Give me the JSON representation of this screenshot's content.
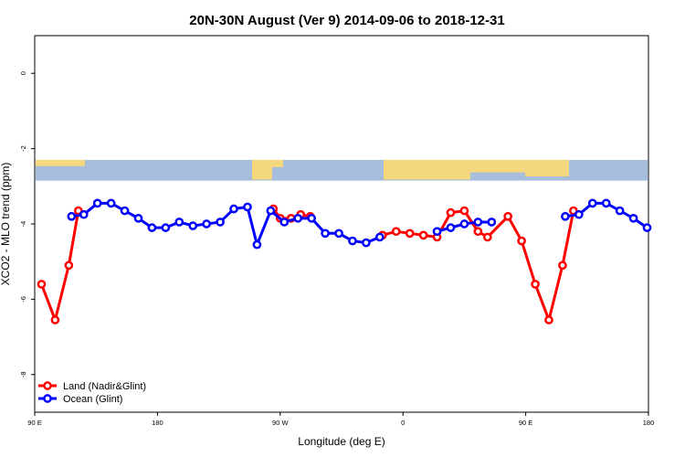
{
  "chart_data": {
    "type": "line",
    "title": "20N-30N August (Ver 9)   2014-09-06 to 2018-12-31",
    "xlabel": "Longitude (deg E)",
    "ylabel": "XCO2 - MLO trend (ppm)",
    "xlim": [
      90,
      540
    ],
    "ylim": [
      -9,
      1
    ],
    "x_ticks": [
      {
        "value": 90,
        "label": "90 E"
      },
      {
        "value": 180,
        "label": "180"
      },
      {
        "value": 270,
        "label": "90 W"
      },
      {
        "value": 360,
        "label": "0"
      },
      {
        "value": 450,
        "label": "90 E"
      },
      {
        "value": 540,
        "label": "180"
      }
    ],
    "y_ticks": [
      {
        "value": 0,
        "label": "0"
      },
      {
        "value": -2,
        "label": "-2"
      },
      {
        "value": -4,
        "label": "-4"
      },
      {
        "value": -6,
        "label": "-6"
      },
      {
        "value": -8,
        "label": "-8"
      }
    ],
    "map_strip": {
      "y_top": -2.3,
      "y_bottom": -2.85,
      "ocean_color": "#a7bddc",
      "land_color": "#f5d77e"
    },
    "series": [
      {
        "name": "Land (Nadir&Glint)",
        "color": "#ff0000",
        "segments": [
          [
            [
              95,
              -5.6
            ],
            [
              105,
              -6.55
            ],
            [
              115,
              -5.1
            ],
            [
              122,
              -3.65
            ]
          ],
          [
            [
              265,
              -3.6
            ],
            [
              270,
              -3.85
            ],
            [
              278,
              -3.85
            ],
            [
              285,
              -3.75
            ],
            [
              292,
              -3.8
            ]
          ],
          [
            [
              345,
              -4.3
            ],
            [
              355,
              -4.2
            ],
            [
              365,
              -4.25
            ],
            [
              375,
              -4.3
            ],
            [
              385,
              -4.35
            ],
            [
              395,
              -3.7
            ],
            [
              405,
              -3.65
            ],
            [
              415,
              -4.2
            ],
            [
              422,
              -4.35
            ],
            [
              437,
              -3.8
            ],
            [
              447,
              -4.45
            ],
            [
              457,
              -5.6
            ],
            [
              467,
              -6.55
            ],
            [
              477,
              -5.1
            ],
            [
              485,
              -3.65
            ]
          ]
        ]
      },
      {
        "name": "Ocean (Glint)",
        "color": "#0000ff",
        "segments": [
          [
            [
              117,
              -3.8
            ],
            [
              126,
              -3.75
            ],
            [
              136,
              -3.45
            ],
            [
              146,
              -3.45
            ],
            [
              156,
              -3.65
            ],
            [
              166,
              -3.85
            ],
            [
              176,
              -4.1
            ],
            [
              186,
              -4.1
            ],
            [
              196,
              -3.95
            ],
            [
              206,
              -4.05
            ],
            [
              216,
              -4.0
            ],
            [
              226,
              -3.95
            ],
            [
              236,
              -3.6
            ],
            [
              246,
              -3.55
            ],
            [
              253,
              -4.55
            ],
            [
              263,
              -3.65
            ],
            [
              273,
              -3.95
            ],
            [
              283,
              -3.85
            ],
            [
              293,
              -3.85
            ],
            [
              303,
              -4.25
            ],
            [
              313,
              -4.25
            ],
            [
              323,
              -4.45
            ],
            [
              333,
              -4.5
            ],
            [
              343,
              -4.35
            ]
          ],
          [
            [
              385,
              -4.2
            ],
            [
              395,
              -4.1
            ],
            [
              405,
              -4.0
            ],
            [
              415,
              -3.95
            ],
            [
              425,
              -3.95
            ]
          ],
          [
            [
              479,
              -3.8
            ],
            [
              489,
              -3.75
            ],
            [
              499,
              -3.45
            ],
            [
              509,
              -3.45
            ],
            [
              519,
              -3.65
            ],
            [
              529,
              -3.85
            ],
            [
              539,
              -4.1
            ]
          ]
        ]
      }
    ],
    "legend": {
      "position": "bottom-left"
    }
  }
}
